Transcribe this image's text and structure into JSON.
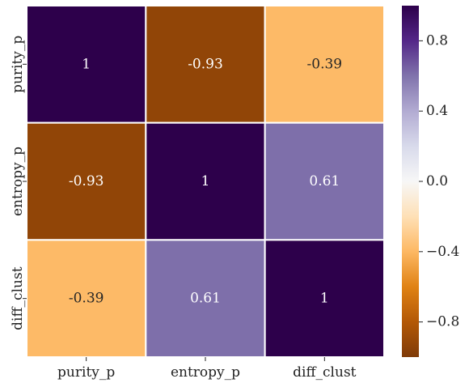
{
  "chart_data": {
    "type": "heatmap",
    "title": "",
    "xlabel": "",
    "ylabel": "",
    "x_categories": [
      "purity_p",
      "entropy_p",
      "diff_clust"
    ],
    "y_categories": [
      "purity_p",
      "entropy_p",
      "diff_clust"
    ],
    "values": [
      [
        1,
        -0.93,
        -0.39
      ],
      [
        -0.93,
        1,
        0.61
      ],
      [
        -0.39,
        0.61,
        1
      ]
    ],
    "cell_labels": [
      [
        "1",
        "-0.93",
        "-0.39"
      ],
      [
        "-0.93",
        "1",
        "0.61"
      ],
      [
        "-0.39",
        "0.61",
        "1"
      ]
    ],
    "colormap": "PuOr",
    "vmin": -1,
    "vmax": 1,
    "colorbar": {
      "ticks": [
        0.8,
        0.4,
        0.0,
        -0.4,
        -0.8
      ],
      "tick_labels": [
        "0.8",
        "0.4",
        "0.0",
        "−0.4",
        "−0.8"
      ]
    },
    "grid": false,
    "legend": "colorbar-right",
    "cell_border_color": "#ffffff"
  }
}
